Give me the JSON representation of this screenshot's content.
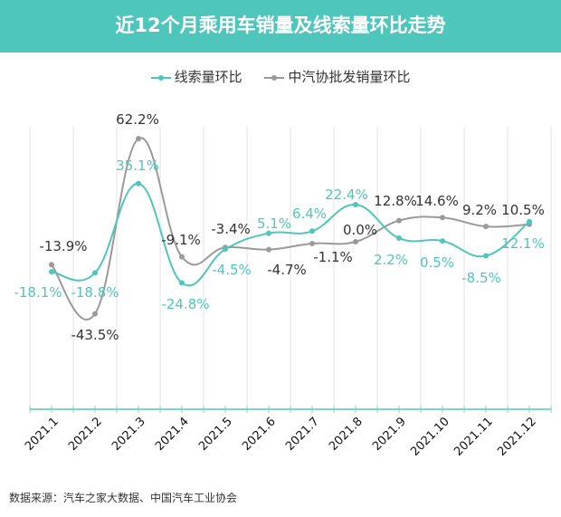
{
  "chart_data": {
    "type": "line",
    "title": "近12个月乘用车销量及线索量环比走势",
    "categories": [
      "2021.1",
      "2021.2",
      "2021.3",
      "2021.4",
      "2021.5",
      "2021.6",
      "2021.7",
      "2021.8",
      "2021.9",
      "2021.10",
      "2021.11",
      "2021.12"
    ],
    "series": [
      {
        "name": "线索量环比",
        "color": "#4fc6bb",
        "values": [
          -18.1,
          -18.8,
          35.1,
          -24.8,
          -4.5,
          5.1,
          6.4,
          22.4,
          2.2,
          0.5,
          -8.5,
          12.1
        ],
        "labels": [
          "-18.1%",
          "-18.8%",
          "35.1%",
          "-24.8%",
          "-4.5%",
          "5.1%",
          "6.4%",
          "22.4%",
          "2.2%",
          "0.5%",
          "-8.5%",
          "12.1%"
        ]
      },
      {
        "name": "中汽协批发销量环比",
        "color": "#9a9a9a",
        "values": [
          -13.9,
          -43.5,
          62.2,
          -9.1,
          -3.4,
          -4.7,
          -1.1,
          0.0,
          12.8,
          14.6,
          9.2,
          10.5
        ],
        "labels": [
          "-13.9%",
          "-43.5%",
          "62.2%",
          "-9.1%",
          "-3.4%",
          "-4.7%",
          "-1.1%",
          "0.0%",
          "12.8%",
          "14.6%",
          "9.2%",
          "10.5%"
        ]
      }
    ],
    "ylim": [
      -101,
      64
    ],
    "grid": "vertical",
    "legend": "top-center"
  },
  "source": "数据来源：汽车之家大数据、中国汽车工业协会"
}
